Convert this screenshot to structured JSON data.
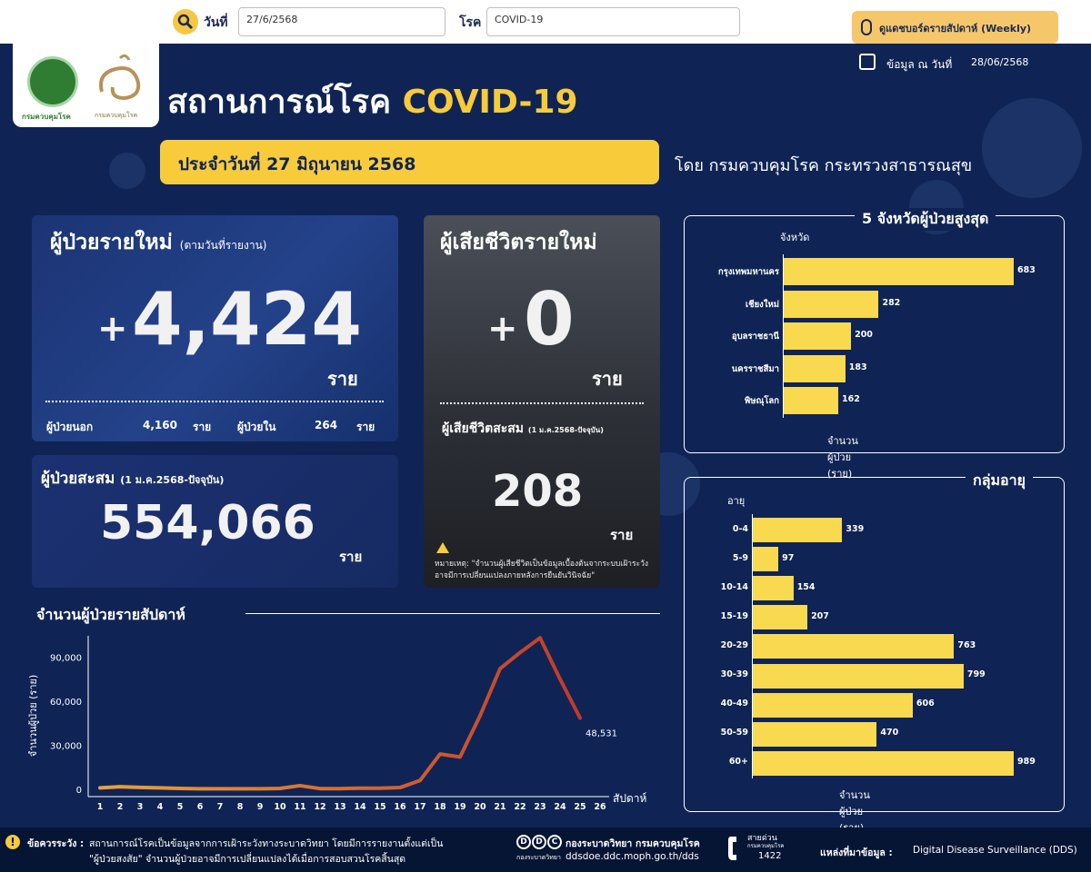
{
  "topbar": {
    "date_label": "วันที่",
    "date_value": "27/6/2568",
    "disease_label": "โรค",
    "disease_value": "COVID-19",
    "weekly_button": "ดูแดชบอร์ดรายสัปดาห์ (Weekly)"
  },
  "header": {
    "logo1_text": "กรมควบคุมโรค",
    "logo2_text": "กรมควบคุมโรค",
    "title_prefix": "สถานการณ์โรค",
    "title_highlight": "COVID-19",
    "asof_label": "ข้อมูล ณ วันที่",
    "asof_value": "28/06/2568",
    "date_banner": "ประจำวันที่  27 มิถุนายน 2568",
    "by_line": "โดย กรมควบคุมโรค  กระทรวงสาธารณสุข"
  },
  "new_cases": {
    "title": "ผู้ป่วยรายใหม่",
    "subtitle": "(ตามวันที่รายงาน)",
    "plus": "+",
    "value": "4,424",
    "unit": "ราย",
    "outpatient_label": "ผู้ป่วยนอก",
    "outpatient_value": "4,160",
    "outpatient_unit": "ราย",
    "inpatient_label": "ผู้ป่วยใน",
    "inpatient_value": "264",
    "inpatient_unit": "ราย"
  },
  "cumulative": {
    "title": "ผู้ป่วยสะสม",
    "subtitle": "(1 ม.ค.2568-ปัจจุบัน)",
    "value": "554,066",
    "unit": "ราย"
  },
  "deaths": {
    "title": "ผู้เสียชีวิตรายใหม่",
    "plus": "+",
    "value": "0",
    "unit": "ราย",
    "cum_title": "ผู้เสียชีวิตสะสม",
    "cum_subtitle": "(1 ม.ค.2568-ปัจจุบัน)",
    "cum_value": "208",
    "cum_unit": "ราย",
    "note_label": "หมายเหตุ:",
    "note_text": "\"จำนวนผู้เสียชีวิตเป็นข้อมูลเบื้องต้นจากระบบเฝ้าระวังอาจมีการเปลี่ยนแปลงภายหลังการยืนยันวินิจฉัย\""
  },
  "colors": {
    "background": "#0f2454",
    "accent": "#f8cb3b",
    "bar": "#f9d94f",
    "line_start": "#e8a13c",
    "line_end": "#c0392b"
  },
  "weekly_chart": {
    "section_title": "จำนวนผู้ป่วยรายสัปดาห์"
  },
  "chart_data": [
    {
      "type": "line",
      "title": "จำนวนผู้ป่วยรายสัปดาห์",
      "xlabel": "สัปดาห์",
      "ylabel": "จำนวนผู้ป่วย (ราย)",
      "ylim": [
        0,
        105000
      ],
      "yticks": [
        0,
        30000,
        60000,
        90000
      ],
      "ytick_labels": [
        "0",
        "30,000",
        "60,000",
        "90,000"
      ],
      "x": [
        1,
        2,
        3,
        4,
        5,
        6,
        7,
        8,
        9,
        10,
        11,
        12,
        13,
        14,
        15,
        16,
        17,
        18,
        19,
        20,
        21,
        22,
        23,
        24,
        25,
        26
      ],
      "y": [
        1000,
        1800,
        1300,
        1000,
        600,
        400,
        400,
        400,
        400,
        600,
        2500,
        500,
        500,
        800,
        800,
        1200,
        6000,
        24000,
        22000,
        50000,
        82000,
        93000,
        103000,
        75000,
        48531,
        null
      ],
      "annotations": [
        {
          "x": 25,
          "label": "48,531"
        }
      ],
      "grid": false
    },
    {
      "type": "bar",
      "orientation": "horizontal",
      "title": "5  จังหวัดผู้ป่วยสูงสุด",
      "ylabel": "จังหวัด",
      "xlabel": "จำนวนผู้ป่วย (ราย)",
      "categories": [
        "กรุงเทพมหานคร",
        "เชียงใหม่",
        "อุบลราชธานี",
        "นครราชสีมา",
        "พิษณุโลก"
      ],
      "values": [
        683,
        282,
        200,
        183,
        162
      ],
      "value_labels": [
        "683",
        "282",
        "200",
        "183",
        "162"
      ]
    },
    {
      "type": "bar",
      "orientation": "horizontal",
      "title": "กลุ่มอายุ",
      "ylabel": "อายุ",
      "xlabel": "จำนวนผู้ป่วย (ราย)",
      "categories": [
        "0-4",
        "5-9",
        "10-14",
        "15-19",
        "20-29",
        "30-39",
        "40-49",
        "50-59",
        "60+"
      ],
      "values": [
        339,
        97,
        154,
        207,
        763,
        799,
        606,
        470,
        989
      ],
      "value_labels": [
        "339",
        "97",
        "154",
        "207",
        "763",
        "799",
        "606",
        "470",
        "989"
      ]
    }
  ],
  "footer": {
    "caution_label": "ข้อควรระวัง :",
    "caution_line1": "สถานการณ์โรคเป็นข้อมูลจากการเฝ้าระวังทางระบาดวิทยา โดยมีการรายงานตั้งแต่เป็น",
    "caution_line2": "\"ผู้ป่วยสงสัย\" จำนวนผู้ป่วยอาจมีการเปลี่ยนแปลงได้เมื่อการสอบสวนโรคสิ้นสุด",
    "ddc_name": "กองระบาดวิทยา กรมควบคุมโรค",
    "ddc_url": "ddsdoe.ddc.moph.go.th/dds",
    "ddc_logo_sub": "กองระบาดวิทยา",
    "hotline_label": "สายด่วน",
    "hotline_sub": "กรมควบคุมโรค",
    "hotline_number": "1422",
    "source_label": "แหล่งที่มาข้อมูล :",
    "source_value": "Digital Disease Surveillance (DDS)"
  }
}
